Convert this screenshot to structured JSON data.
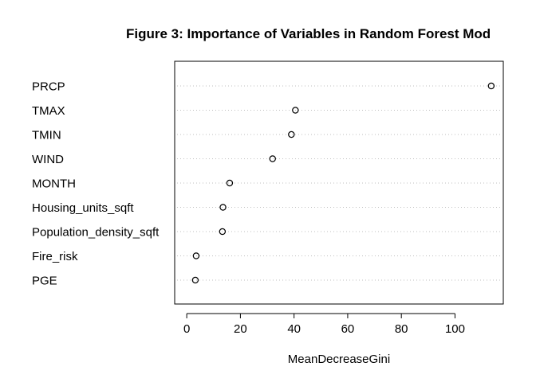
{
  "chart_data": {
    "type": "scatter",
    "title": "Figure 3: Importance of Variables in Random Forest Mod",
    "xlabel": "MeanDecreaseGini",
    "ylabel": "",
    "categories": [
      "PRCP",
      "TMAX",
      "TMIN",
      "WIND",
      "MONTH",
      "Housing_units_sqft",
      "Population_density_sqft",
      "Fire_risk",
      "PGE"
    ],
    "values": [
      113.5,
      40.5,
      39,
      32,
      16,
      13.5,
      13.3,
      3.5,
      3.2
    ],
    "xlim": [
      -4.5,
      118
    ],
    "xticks": [
      0,
      20,
      40,
      60,
      80,
      100
    ],
    "xtick_labels": [
      "0",
      "20",
      "40",
      "60",
      "80",
      "100"
    ],
    "grid": "dotted horizontal",
    "legend": "none"
  }
}
